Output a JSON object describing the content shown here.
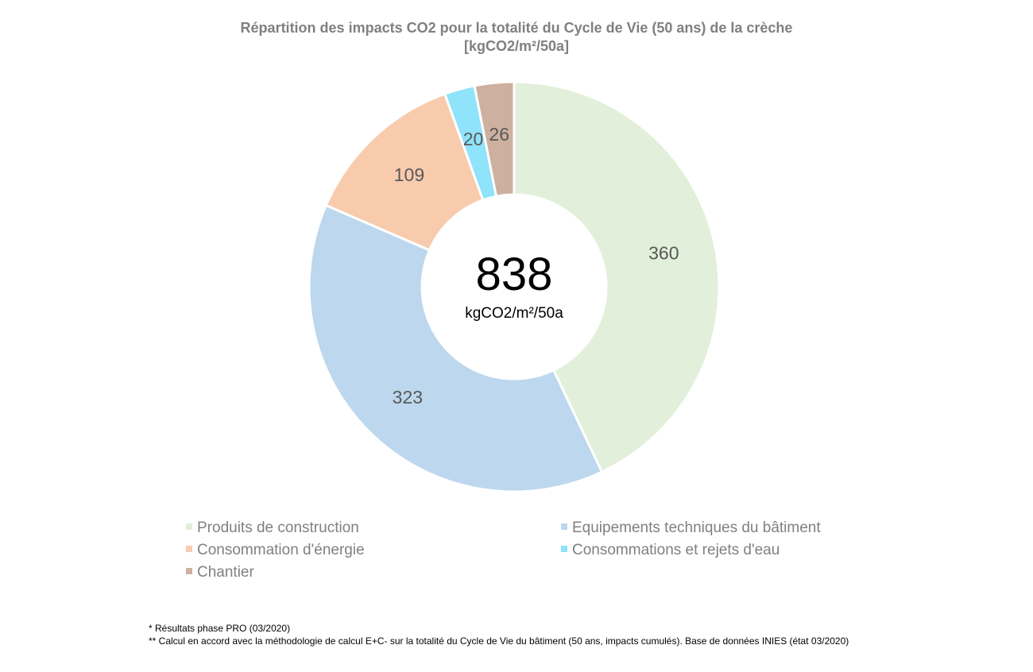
{
  "chart_data": {
    "type": "pie",
    "title": "Répartition des impacts CO2 pour la totalité du Cycle de Vie (50 ans) de la crèche",
    "subtitle": "[kgCO2/m²/50a]",
    "center_value": "838",
    "center_unit": "kgCO2/m²/50a",
    "categories": [
      "Produits de construction",
      "Equipements techniques du bâtiment",
      "Consommation d'énergie",
      "Consommations et rejets d'eau",
      "Chantier"
    ],
    "values": [
      360,
      323,
      109,
      20,
      26
    ],
    "colors": [
      "#e2efda",
      "#bdd7ee",
      "#f8cbad",
      "#8fe3fa",
      "#cdb0a0"
    ],
    "label_color": "#595959",
    "legend_position": "bottom",
    "donut": true
  },
  "notes": [
    "*  Résultats phase PRO (03/2020)",
    "** Calcul en accord avec la méthodologie de calcul E+C- sur la totalité du Cycle de Vie du bâtiment (50 ans, impacts cumulés). Base de données INIES (état 03/2020)"
  ]
}
